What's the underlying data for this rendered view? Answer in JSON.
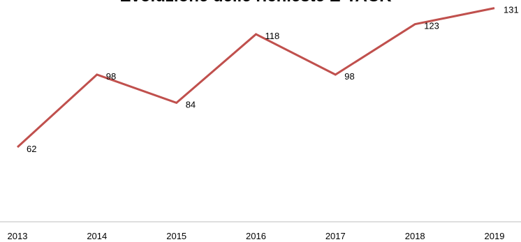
{
  "chart_data": {
    "type": "line",
    "title": "Evoluzione delle richieste E-TACK",
    "categories": [
      "2013",
      "2014",
      "2015",
      "2016",
      "2017",
      "2018",
      "2019"
    ],
    "series": [
      {
        "values": [
          62,
          98,
          84,
          118,
          98,
          123,
          131
        ],
        "color": "#c0504d"
      }
    ],
    "data_labels": [
      "62",
      "98",
      "84",
      "118",
      "98",
      "123",
      "131"
    ],
    "ylim": [
      25,
      135
    ],
    "grid": false,
    "legend": "none",
    "axis_color": "#bfbfbf"
  }
}
